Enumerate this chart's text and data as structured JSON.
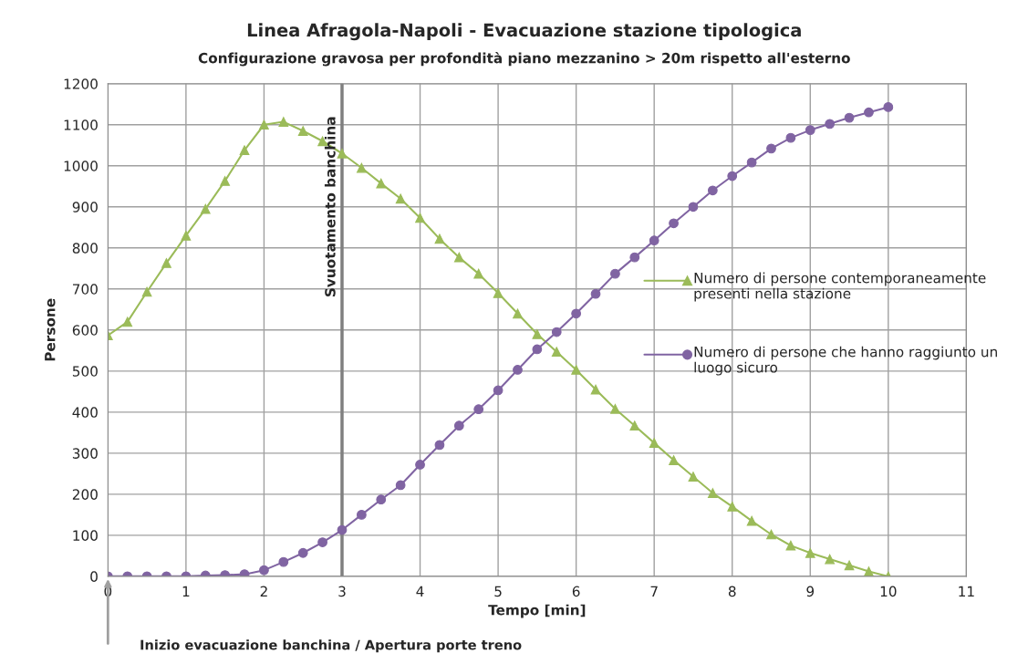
{
  "chart_data": {
    "type": "line",
    "title": "Linea Afragola-Napoli - Evacuazione stazione tipologica",
    "subtitle": "Configurazione gravosa per profondità piano mezzanino > 20m rispetto all'esterno",
    "xlabel": "Tempo [min]",
    "ylabel": "Persone",
    "x": [
      0,
      0.25,
      0.5,
      0.75,
      1,
      1.25,
      1.5,
      1.75,
      2,
      2.25,
      2.5,
      2.75,
      3,
      3.25,
      3.5,
      3.75,
      4,
      4.25,
      4.5,
      4.75,
      5,
      5.25,
      5.5,
      5.75,
      6,
      6.25,
      6.5,
      6.75,
      7,
      7.25,
      7.5,
      7.75,
      8,
      8.25,
      8.5,
      8.75,
      9,
      9.25,
      9.5,
      9.75,
      10
    ],
    "series": [
      {
        "name": "Numero di persone contemporaneamente presenti nella stazione",
        "color": "#9bbb59",
        "marker": "triangle",
        "values": [
          587,
          620,
          693,
          763,
          830,
          895,
          963,
          1038,
          1100,
          1107,
          1085,
          1060,
          1030,
          995,
          957,
          920,
          873,
          822,
          777,
          737,
          690,
          640,
          590,
          547,
          503,
          455,
          408,
          367,
          325,
          283,
          243,
          203,
          170,
          135,
          102,
          75,
          57,
          42,
          27,
          12,
          0
        ]
      },
      {
        "name": "Numero di persone che hanno raggiunto un luogo sicuro",
        "color": "#8064a2",
        "marker": "circle",
        "values": [
          0,
          0,
          0,
          0,
          0,
          2,
          3,
          5,
          15,
          35,
          57,
          83,
          113,
          150,
          187,
          222,
          272,
          320,
          367,
          407,
          453,
          503,
          553,
          595,
          640,
          688,
          737,
          777,
          818,
          860,
          900,
          940,
          975,
          1008,
          1042,
          1068,
          1087,
          1102,
          1117,
          1130,
          1143
        ]
      }
    ],
    "xlim": [
      0,
      11
    ],
    "xticks": [
      0,
      1,
      2,
      3,
      4,
      5,
      6,
      7,
      8,
      9,
      10,
      11
    ],
    "ylim": [
      0,
      1200
    ],
    "yticks": [
      0,
      100,
      200,
      300,
      400,
      500,
      600,
      700,
      800,
      900,
      1000,
      1100,
      1200
    ],
    "ref_lines": [
      {
        "axis": "x",
        "value": 3,
        "label": "Svuotamento banchina",
        "color": "#7f7f7f"
      }
    ],
    "annotations": [
      "Inizio evacuazione banchina / Apertura porte treno"
    ],
    "grid": true,
    "legend": "right",
    "line_style": "solid"
  }
}
